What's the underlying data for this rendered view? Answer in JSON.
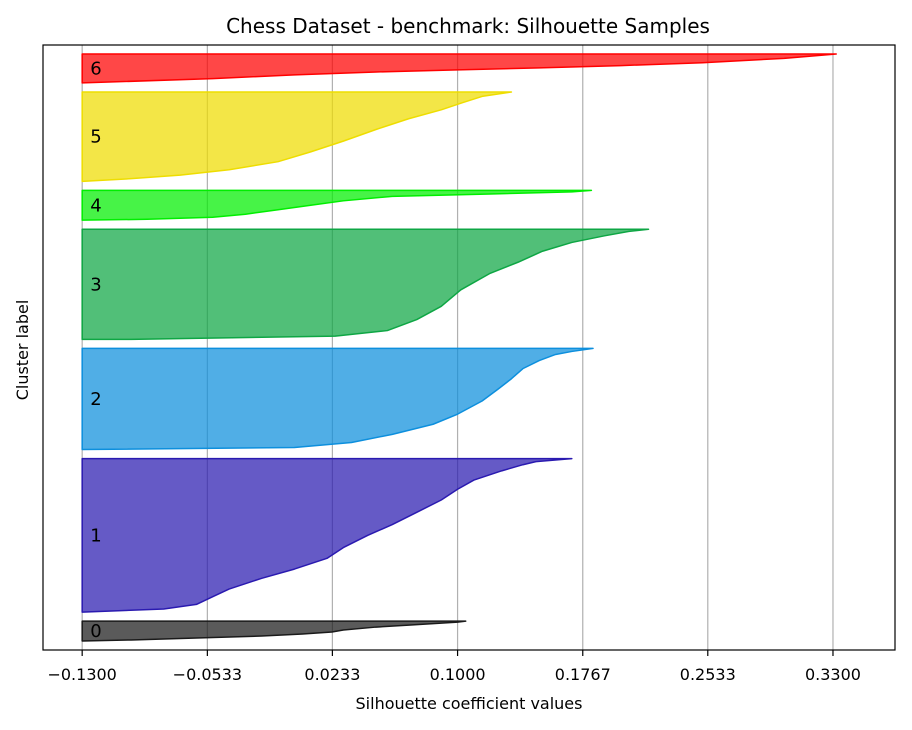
{
  "chart_data": {
    "type": "area",
    "title": "Chess Dataset - benchmark: Silhouette Samples",
    "xlabel": "Silhouette coefficient values",
    "ylabel": "Cluster label",
    "xlim": [
      -0.154,
      0.368
    ],
    "x_ticks": [
      "-0.1300",
      "-0.0533",
      "0.0233",
      "0.1000",
      "0.1767",
      "0.2533",
      "0.3300"
    ],
    "x_tick_values": [
      -0.13,
      -0.0533,
      0.0233,
      0.1,
      0.1767,
      0.2533,
      0.33
    ],
    "grid": "vertical",
    "clusters": [
      {
        "label": "0",
        "color": "#1a1a1a",
        "size": 22,
        "silhouette_profile": [
          [
            0.105,
            0
          ],
          [
            0.1,
            0.05
          ],
          [
            0.09,
            0.1
          ],
          [
            0.07,
            0.2
          ],
          [
            0.05,
            0.3
          ],
          [
            0.03,
            0.45
          ],
          [
            0.023,
            0.55
          ],
          [
            0.005,
            0.65
          ],
          [
            -0.02,
            0.75
          ],
          [
            -0.06,
            0.85
          ],
          [
            -0.1,
            0.95
          ],
          [
            -0.13,
            1
          ]
        ]
      },
      {
        "label": "1",
        "color": "#2a1ab0",
        "size": 170,
        "silhouette_profile": [
          [
            0.17,
            0
          ],
          [
            0.148,
            0.02
          ],
          [
            0.14,
            0.04
          ],
          [
            0.127,
            0.08
          ],
          [
            0.11,
            0.14
          ],
          [
            0.1,
            0.2
          ],
          [
            0.09,
            0.27
          ],
          [
            0.075,
            0.35
          ],
          [
            0.06,
            0.43
          ],
          [
            0.045,
            0.5
          ],
          [
            0.03,
            0.58
          ],
          [
            0.02,
            0.65
          ],
          [
            0.0,
            0.72
          ],
          [
            -0.02,
            0.78
          ],
          [
            -0.04,
            0.85
          ],
          [
            -0.05,
            0.9
          ],
          [
            -0.06,
            0.95
          ],
          [
            -0.08,
            0.98
          ],
          [
            -0.13,
            1
          ]
        ]
      },
      {
        "label": "2",
        "color": "#0d8fdd",
        "size": 112,
        "silhouette_profile": [
          [
            0.183,
            0
          ],
          [
            0.17,
            0.03
          ],
          [
            0.16,
            0.06
          ],
          [
            0.15,
            0.12
          ],
          [
            0.14,
            0.2
          ],
          [
            0.133,
            0.3
          ],
          [
            0.125,
            0.4
          ],
          [
            0.115,
            0.52
          ],
          [
            0.1,
            0.65
          ],
          [
            0.085,
            0.75
          ],
          [
            0.06,
            0.85
          ],
          [
            0.035,
            0.93
          ],
          [
            0.0,
            0.98
          ],
          [
            -0.13,
            1
          ]
        ]
      },
      {
        "label": "3",
        "color": "#0ea644",
        "size": 122,
        "silhouette_profile": [
          [
            0.217,
            0
          ],
          [
            0.205,
            0.02
          ],
          [
            0.19,
            0.06
          ],
          [
            0.17,
            0.12
          ],
          [
            0.152,
            0.2
          ],
          [
            0.137,
            0.3
          ],
          [
            0.12,
            0.4
          ],
          [
            0.102,
            0.55
          ],
          [
            0.09,
            0.7
          ],
          [
            0.075,
            0.82
          ],
          [
            0.057,
            0.92
          ],
          [
            0.025,
            0.97
          ],
          [
            -0.1,
            1
          ],
          [
            -0.13,
            1
          ]
        ]
      },
      {
        "label": "4",
        "color": "#00ee00",
        "size": 33,
        "silhouette_profile": [
          [
            0.182,
            0
          ],
          [
            0.17,
            0.05
          ],
          [
            0.12,
            0.12
          ],
          [
            0.06,
            0.2
          ],
          [
            0.03,
            0.35
          ],
          [
            0.01,
            0.5
          ],
          [
            -0.01,
            0.65
          ],
          [
            -0.03,
            0.8
          ],
          [
            -0.05,
            0.9
          ],
          [
            -0.09,
            0.97
          ],
          [
            -0.13,
            1
          ]
        ]
      },
      {
        "label": "5",
        "color": "#eedd00",
        "size": 99,
        "silhouette_profile": [
          [
            0.133,
            0
          ],
          [
            0.115,
            0.05
          ],
          [
            0.103,
            0.12
          ],
          [
            0.09,
            0.2
          ],
          [
            0.07,
            0.3
          ],
          [
            0.05,
            0.42
          ],
          [
            0.03,
            0.55
          ],
          [
            0.01,
            0.67
          ],
          [
            -0.01,
            0.78
          ],
          [
            -0.04,
            0.87
          ],
          [
            -0.07,
            0.93
          ],
          [
            -0.1,
            0.97
          ],
          [
            -0.13,
            1
          ]
        ]
      },
      {
        "label": "6",
        "color": "#ff0000",
        "size": 32,
        "silhouette_profile": [
          [
            0.332,
            0
          ],
          [
            0.3,
            0.15
          ],
          [
            0.25,
            0.3
          ],
          [
            0.2,
            0.4
          ],
          [
            0.15,
            0.48
          ],
          [
            0.1,
            0.55
          ],
          [
            0.05,
            0.62
          ],
          [
            0.0,
            0.72
          ],
          [
            -0.05,
            0.85
          ],
          [
            -0.13,
            1
          ]
        ]
      }
    ]
  }
}
